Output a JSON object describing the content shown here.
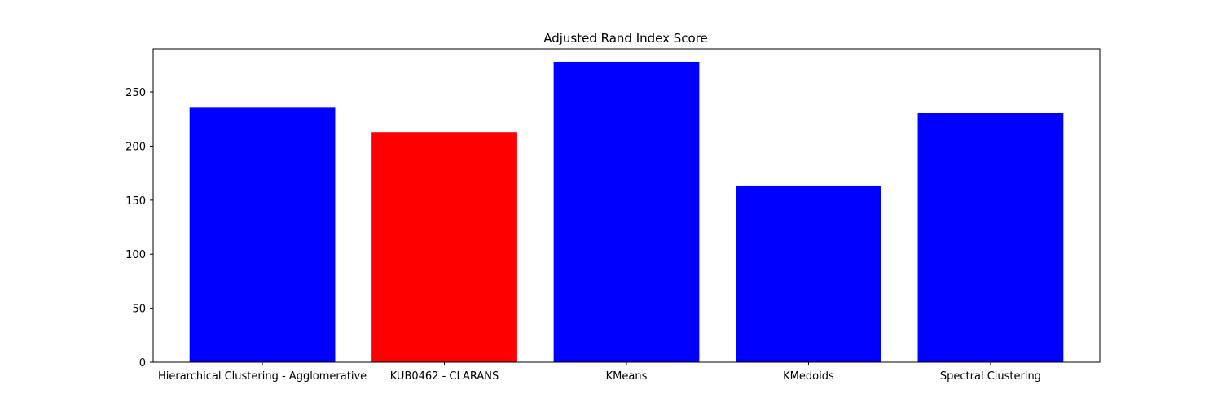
{
  "chart_data": {
    "type": "bar",
    "title": "Adjusted Rand Index Score",
    "xlabel": "",
    "ylabel": "",
    "categories": [
      "Hierarchical Clustering - Agglomerative",
      "KUB0462 - CLARANS",
      "KMeans",
      "KMedoids",
      "Spectral Clustering"
    ],
    "values": [
      235.5,
      213,
      278,
      163.5,
      230.5
    ],
    "colors": [
      "#0000ff",
      "#ff0000",
      "#0000ff",
      "#0000ff",
      "#0000ff"
    ],
    "ylim": [
      0,
      290
    ],
    "yticks": [
      0,
      50,
      100,
      150,
      200,
      250
    ],
    "grid": false,
    "legend": "none"
  }
}
